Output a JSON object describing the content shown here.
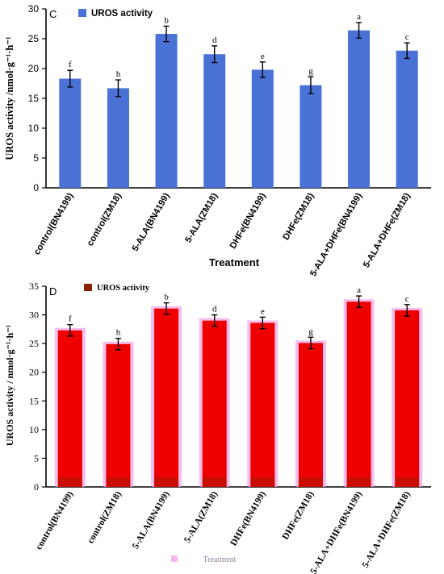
{
  "colors": {
    "panel_c_bar": "#4a72d6",
    "panel_d_bar": "#ee0000",
    "panel_d_glow": "#f6a6e6",
    "panel_d_legend": "#8b2200",
    "axis": "#000000"
  },
  "chart_data": [
    {
      "type": "bar",
      "panel_label": "C",
      "title": "",
      "legend": "UROS activity",
      "legend_position": "top-left",
      "xlabel": "Treatment",
      "ylabel": "UROS activity /nmol·g⁻¹·h⁻¹",
      "categories": [
        "control(BN4199)",
        "control(ZM18)",
        "5-ALA(BN4199)",
        "5-ALA(ZM18)",
        "DHFe(BN4199)",
        "DHFe(ZM18)",
        "5-ALA+DHFe(BN4199)",
        "5-ALA+DHFe(ZM18)"
      ],
      "values": [
        18.3,
        16.7,
        25.8,
        22.4,
        19.8,
        17.2,
        26.4,
        23.0
      ],
      "errors": [
        1.4,
        1.4,
        1.3,
        1.4,
        1.3,
        1.4,
        1.3,
        1.3
      ],
      "significance": [
        "f",
        "h",
        "b",
        "d",
        "e",
        "g",
        "a",
        "c"
      ],
      "ylim": [
        0,
        30
      ],
      "yticks": [
        0,
        5,
        10,
        15,
        20,
        25,
        30
      ],
      "grid": false
    },
    {
      "type": "bar",
      "panel_label": "D",
      "title": "",
      "legend": "UROS activity",
      "legend_position": "top-left",
      "xlabel": "Treatment",
      "ylabel": "UROS activity / nmol·g⁻¹·h⁻¹",
      "categories": [
        "control(BN4199)",
        "control(ZM18)",
        "5-ALA(BN4199)",
        "5-ALA(ZM18)",
        "DHFe(BN4199)",
        "DHFe(ZM18)",
        "5-ALA+DHFe(BN4199)",
        "5-ALA+DHFe(ZM18)"
      ],
      "values": [
        27.3,
        24.9,
        31.1,
        29.0,
        28.6,
        25.1,
        32.3,
        30.8
      ],
      "errors": [
        1.0,
        1.0,
        1.0,
        1.0,
        1.0,
        1.0,
        1.0,
        1.0
      ],
      "significance": [
        "f",
        "h",
        "b",
        "d",
        "e",
        "g",
        "a",
        "c"
      ],
      "ylim": [
        0,
        35
      ],
      "yticks": [
        0,
        5,
        10,
        15,
        20,
        25,
        30,
        35
      ],
      "grid": false
    }
  ]
}
